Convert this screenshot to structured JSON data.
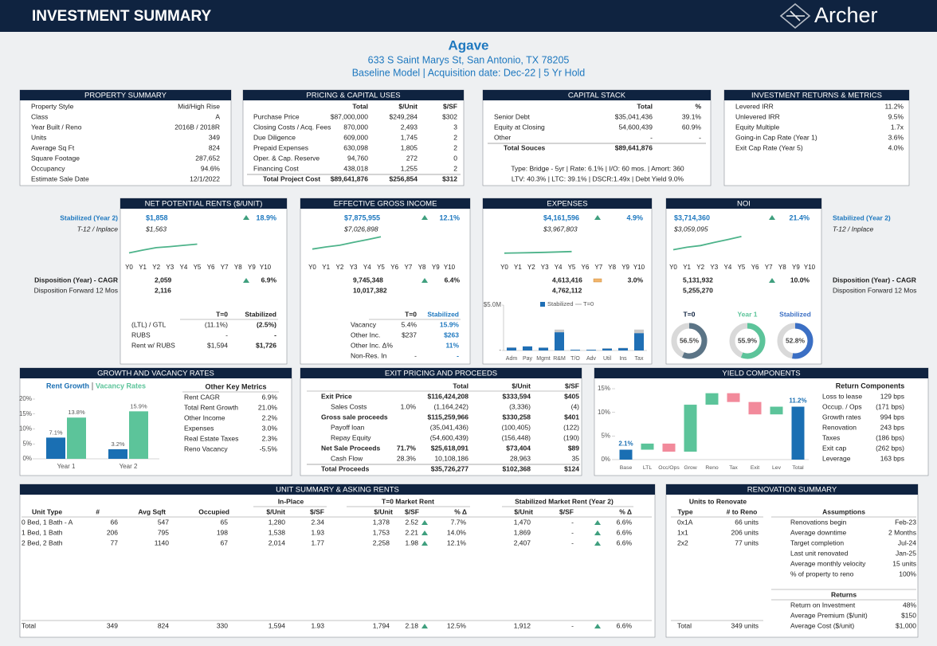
{
  "header": {
    "title": "INVESTMENT SUMMARY",
    "logo": "Archer"
  },
  "property": {
    "name": "Agave",
    "address": "633 S Saint Marys St, San Antonio, TX 78205",
    "model": "Baseline Model  |  Acquisition date: Dec-22  |  5 Yr Hold"
  },
  "property_summary": {
    "title": "PROPERTY SUMMARY",
    "rows": [
      [
        "Property Style",
        "Mid/High Rise"
      ],
      [
        "Class",
        "A"
      ],
      [
        "Year Built / Reno",
        "2016B / 2018R"
      ],
      [
        "Units",
        "349"
      ],
      [
        "Average Sq Ft",
        "824"
      ],
      [
        "Square Footage",
        "287,652"
      ],
      [
        "Occupancy",
        "94.6%"
      ],
      [
        "Estimate Sale Date",
        "12/1/2022"
      ]
    ]
  },
  "pricing": {
    "title": "PRICING & CAPITAL USES",
    "header": [
      "Total",
      "$/Unit",
      "$/SF"
    ],
    "rows": [
      [
        "Purchase Price",
        "$87,000,000",
        "$249,284",
        "$302"
      ],
      [
        "Closing Costs / Acq. Fees",
        "870,000",
        "2,493",
        "3"
      ],
      [
        "Due Diligence",
        "609,000",
        "1,745",
        "2"
      ],
      [
        "Prepaid Expenses",
        "630,098",
        "1,805",
        "2"
      ],
      [
        "Oper. & Cap. Reserve",
        "94,760",
        "272",
        "0"
      ],
      [
        "Financing Cost",
        "438,018",
        "1,255",
        "2"
      ]
    ],
    "total": [
      "Total Project Cost",
      "$89,641,876",
      "$256,854",
      "$312"
    ]
  },
  "capital_stack": {
    "title": "CAPITAL STACK",
    "header": [
      "Total",
      "%"
    ],
    "rows": [
      [
        "Senior Debt",
        "$35,041,436",
        "39.1%"
      ],
      [
        "Equity at Closing",
        "54,600,439",
        "60.9%"
      ],
      [
        "Other",
        "-",
        "-"
      ]
    ],
    "total": [
      "Total Souces",
      "$89,641,876"
    ],
    "notes": [
      "Type: Bridge - 5yr | Rate: 6.1% | I/O: 60 mos. | Amort: 360",
      "LTV: 40.3% | LTC: 39.1% | DSCR:1.49x | Debt Yield 9.0%"
    ]
  },
  "returns": {
    "title": "INVESTMENT RETURNS & METRICS",
    "rows": [
      [
        "Levered IRR",
        "11.2%"
      ],
      [
        "Unlevered IRR",
        "9.5%"
      ],
      [
        "Equity Multiple",
        "1.7x"
      ],
      [
        "Going-in Cap Rate (Year 1)",
        "3.6%"
      ],
      [
        "Exit Cap Rate (Year 5)",
        "4.0%"
      ]
    ]
  },
  "metric_labels": {
    "stabilized": "Stabilized (Year 2)",
    "inplace": "T-12 / Inplace",
    "disposition": "Disposition (Year) - CAGR",
    "forward": "Disposition Forward 12 Mos"
  },
  "metrics": [
    {
      "title": "NET POTENTIAL RENTS ($/UNIT)",
      "stabilized": "$1,858",
      "change": "18.9%",
      "inplace": "$1,563",
      "disposition": "2,059",
      "cagr": "6.9%",
      "forward": "2,116",
      "table": {
        "header": [
          "T=0",
          "Stabilized"
        ],
        "rows": [
          [
            "(LTL) / GTL",
            "(11.1%)",
            "(2.5%)"
          ],
          [
            "RUBS",
            "-",
            "-"
          ],
          [
            "Rent w/ RUBS",
            "$1,594",
            "$1,726"
          ]
        ]
      }
    },
    {
      "title": "EFFECTIVE GROSS INCOME",
      "stabilized": "$7,875,955",
      "change": "12.1%",
      "inplace": "$7,026,898",
      "disposition": "9,745,348",
      "cagr": "6.4%",
      "forward": "10,017,382",
      "table": {
        "header": [
          "T=0",
          "Stabilized"
        ],
        "rows": [
          [
            "Vacancy",
            "5.4%",
            "15.9%"
          ],
          [
            "Other Inc.",
            "$237",
            "$263"
          ],
          [
            "Other Inc. Δ%",
            null,
            "11%"
          ],
          [
            "Non-Res. In",
            "-",
            "-"
          ]
        ]
      }
    },
    {
      "title": "EXPENSES",
      "stabilized": "$4,161,596",
      "change": "4.9%",
      "inplace": "$3,967,803",
      "disposition": "4,613,416",
      "cagr": "3.0%",
      "forward": "4,762,112"
    },
    {
      "title": "NOI",
      "stabilized": "$3,714,360",
      "change": "21.4%",
      "inplace": "$3,059,095",
      "disposition": "5,131,932",
      "cagr": "10.0%",
      "forward": "5,255,270"
    }
  ],
  "growth": {
    "title": "GROWTH AND VACANCY RATES",
    "metrics_title": "Other Key Metrics",
    "rows": [
      [
        "Rent CAGR",
        "6.9%"
      ],
      [
        "Total Rent Growth",
        "21.0%"
      ],
      [
        "Other Income",
        "2.2%"
      ],
      [
        "Expenses",
        "3.0%"
      ],
      [
        "Real Estate Taxes",
        "2.3%"
      ],
      [
        "Reno Vacancy",
        "-5.5%"
      ]
    ]
  },
  "exit": {
    "title": "EXIT PRICING AND PROCEEDS",
    "header": [
      "Total",
      "$/Unit",
      "$/SF"
    ],
    "rows": [
      [
        "Exit Price",
        null,
        "$116,424,208",
        "$333,594",
        "$405"
      ],
      [
        "Sales Costs",
        "1.0%",
        "(1,164,242)",
        "(3,336)",
        "(4)"
      ],
      [
        "Gross sale proceeds",
        null,
        "$115,259,966",
        "$330,258",
        "$401"
      ],
      [
        "Payoff loan",
        null,
        "(35,041,436)",
        "(100,405)",
        "(122)"
      ],
      [
        "Repay Equity",
        null,
        "(54,600,439)",
        "(156,448)",
        "(190)"
      ],
      [
        "Net Sale Proceeds",
        "71.7%",
        "$25,618,091",
        "$73,404",
        "$89"
      ],
      [
        "Cash Flow",
        "28.3%",
        "10,108,186",
        "28,963",
        "35"
      ],
      [
        "Total Proceeds",
        null,
        "$35,726,277",
        "$102,368",
        "$124"
      ]
    ]
  },
  "yield": {
    "title": "YIELD COMPONENTS",
    "components_title": "Return Components",
    "rows": [
      [
        "Loss to lease",
        "129 bps"
      ],
      [
        "Occup. / Ops",
        "(171 bps)"
      ],
      [
        "Growth rates",
        "994 bps"
      ],
      [
        "Renovation",
        "243 bps"
      ],
      [
        "Taxes",
        "(186 bps)"
      ],
      [
        "Exit cap",
        "(262 bps)"
      ],
      [
        "Leverage",
        "163 bps"
      ]
    ]
  },
  "units": {
    "title": "UNIT SUMMARY & ASKING RENTS",
    "groups": [
      "In-Place",
      "T=0 Market Rent",
      "Stabilized Market Rent (Year 2)"
    ],
    "columns": [
      "Unit Type",
      "#",
      "Avg Sqft",
      "Occupied",
      "$/Unit",
      "$/SF",
      "$/Unit",
      "$/SF",
      "% Δ",
      "$/Unit",
      "$/SF",
      "% Δ"
    ],
    "rows": [
      [
        "0 Bed, 1 Bath - A",
        "66",
        "547",
        "65",
        "1,280",
        "2.34",
        "1,378",
        "2.52",
        "7.7%",
        "1,470",
        "-",
        "6.6%"
      ],
      [
        "1 Bed, 1 Bath",
        "206",
        "795",
        "198",
        "1,538",
        "1.93",
        "1,753",
        "2.21",
        "14.0%",
        "1,869",
        "-",
        "6.6%"
      ],
      [
        "2 Bed, 2 Bath",
        "77",
        "1140",
        "67",
        "2,014",
        "1.77",
        "2,258",
        "1.98",
        "12.1%",
        "2,407",
        "-",
        "6.6%"
      ]
    ],
    "total": [
      "Total",
      "349",
      "824",
      "330",
      "1,594",
      "1.93",
      "1,794",
      "2.18",
      "12.5%",
      "1,912",
      "-",
      "6.6%"
    ]
  },
  "renovation": {
    "title": "RENOVATION SUMMARY",
    "units_title": "Units to Renovate",
    "columns": [
      "Type",
      "# to Reno"
    ],
    "rows": [
      [
        "0x1A",
        "66 units"
      ],
      [
        "1x1",
        "206 units"
      ],
      [
        "2x2",
        "77 units"
      ]
    ],
    "total": [
      "Total",
      "349 units"
    ],
    "assumptions_title": "Assumptions",
    "assumptions": [
      [
        "Renovations begin",
        "Feb-23"
      ],
      [
        "Average downtime",
        "2 Months"
      ],
      [
        "Target completion",
        "Jul-24"
      ],
      [
        "Last unit renovated",
        "Jan-25"
      ],
      [
        "Average monthly velocity",
        "15 units"
      ],
      [
        "% of property to reno",
        "100%"
      ]
    ],
    "returns_title": "Returns",
    "returns": [
      [
        "Return on Investment",
        "48%"
      ],
      [
        "Average Premium ($/unit)",
        "$150"
      ],
      [
        "Average Cost ($/unit)",
        "$1,000"
      ]
    ]
  },
  "chart_data": [
    {
      "type": "line",
      "categories": [
        "Y0",
        "Y1",
        "Y2",
        "Y3",
        "Y4",
        "Y5",
        "Y6",
        "Y7",
        "Y8",
        "Y9",
        "Y10"
      ],
      "values": [
        1563,
        1720,
        1858,
        1920,
        1990,
        2059,
        null,
        null,
        null,
        null,
        null
      ],
      "ylim": [
        1000,
        2800
      ],
      "color": "#4db38a"
    },
    {
      "type": "line",
      "categories": [
        "Y0",
        "Y1",
        "Y2",
        "Y3",
        "Y4",
        "Y5",
        "Y6",
        "Y7",
        "Y8",
        "Y9",
        "Y10"
      ],
      "values": [
        7026898,
        7500000,
        7875955,
        8500000,
        9100000,
        9745348,
        null,
        null,
        null,
        null,
        null
      ],
      "ylim": [
        4000000,
        11000000
      ],
      "color": "#4db38a"
    },
    {
      "type": "line",
      "categories": [
        "Y0",
        "Y1",
        "Y2",
        "Y3",
        "Y4",
        "Y5",
        "Y6",
        "Y7",
        "Y8",
        "Y9",
        "Y10"
      ],
      "values": [
        3967803,
        4060000,
        4161596,
        4300000,
        4450000,
        4613416,
        null,
        null,
        null,
        null,
        null
      ],
      "ylim": [
        0,
        13000000
      ],
      "color": "#4db38a"
    },
    {
      "type": "line",
      "categories": [
        "Y0",
        "Y1",
        "Y2",
        "Y3",
        "Y4",
        "Y5",
        "Y6",
        "Y7",
        "Y8",
        "Y9",
        "Y10"
      ],
      "values": [
        3059095,
        3450000,
        3714360,
        4200000,
        4650000,
        5131932,
        null,
        null,
        null,
        null,
        null
      ],
      "ylim": [
        1000000,
        6000000
      ],
      "color": "#4db38a"
    },
    {
      "type": "bar",
      "categories": [
        "Adm",
        "Pay",
        "Mgmt",
        "R&M",
        "T/O",
        "Adv",
        "Util",
        "Ins",
        "Tax"
      ],
      "series": [
        {
          "name": "Stabilized",
          "color": "#1f6fb5",
          "values": [
            300000,
            450000,
            300000,
            2000000,
            80000,
            80000,
            200000,
            250000,
            1900000
          ]
        },
        {
          "name": "T=0",
          "color": "#c8c8c8",
          "values": [
            350000,
            400000,
            330000,
            2300000,
            80000,
            90000,
            250000,
            300000,
            2300000
          ]
        }
      ],
      "ylim": [
        0,
        5000000
      ],
      "yticks": [
        {
          "value": 0,
          "label": "-"
        },
        {
          "value": 5000000,
          "label": "$5.0M"
        }
      ]
    },
    {
      "type": "donut",
      "categories": [
        "T=0",
        "Year 1",
        "Stabilized"
      ],
      "values": [
        56.5,
        55.9,
        52.8
      ],
      "value_labels": [
        "56.5%",
        "55.9%",
        "52.8%"
      ],
      "colors": [
        "#5b7486",
        "#5cc49a",
        "#3b6fc4"
      ]
    },
    {
      "type": "bar",
      "categories": [
        "Year 1",
        "Year 2"
      ],
      "series": [
        {
          "name": "Rent Growth",
          "color": "#1a6fb3",
          "values": [
            7.1,
            3.2
          ],
          "value_labels": [
            "7.1%",
            "3.2%"
          ]
        },
        {
          "name": "Vacancy Rates",
          "color": "#5cc49a",
          "values": [
            13.8,
            15.9
          ],
          "value_labels": [
            "13.8%",
            "15.9%"
          ]
        }
      ],
      "ylim": [
        0,
        20
      ],
      "yticks": [
        {
          "value": 0,
          "label": "0%"
        },
        {
          "value": 5,
          "label": "5%"
        },
        {
          "value": 10,
          "label": "10%"
        },
        {
          "value": 15,
          "label": "15%"
        },
        {
          "value": 20,
          "label": "20%"
        }
      ]
    },
    {
      "type": "waterfall",
      "categories": [
        "Base",
        "LTL",
        "Occ/Ops",
        "Grow",
        "Reno",
        "Tax",
        "Exit",
        "Lev",
        "Total"
      ],
      "values": [
        2.1,
        1.29,
        -1.71,
        9.94,
        2.43,
        -1.86,
        -2.62,
        1.63,
        11.2
      ],
      "value_labels": [
        "2.1%",
        null,
        null,
        null,
        null,
        null,
        null,
        null,
        "11.2%"
      ],
      "color": "#1a6fb3",
      "increase_color": "#5cc49a",
      "decrease_color": "#f28a9b",
      "ylim": [
        0,
        15
      ],
      "yticks": [
        {
          "value": 0,
          "label": "0%"
        },
        {
          "value": 5,
          "label": "5%"
        },
        {
          "value": 10,
          "label": "10%"
        },
        {
          "value": 15,
          "label": "15%"
        }
      ]
    }
  ]
}
